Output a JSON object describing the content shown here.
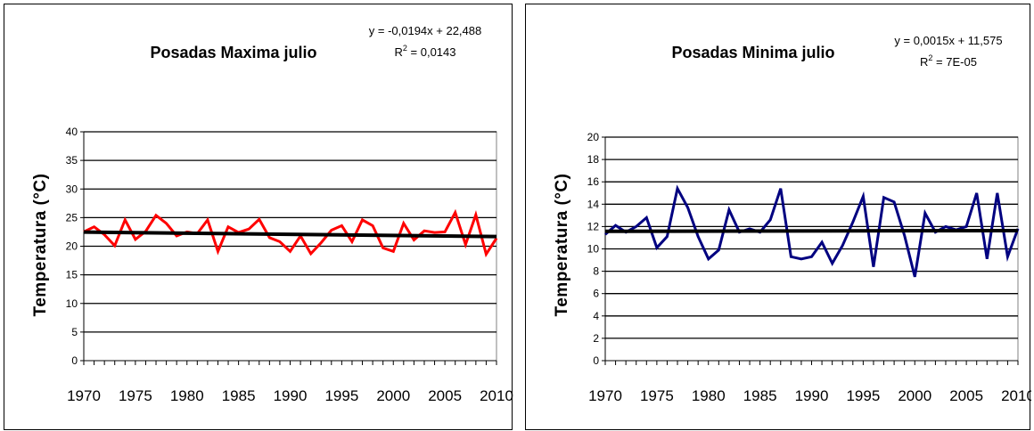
{
  "chart_data": [
    {
      "type": "line",
      "title": "Posadas Maxima julio",
      "ylabel": "Temperatura (°C)",
      "xlabel": "",
      "ylim": [
        0,
        40
      ],
      "yticks": [
        0,
        5,
        10,
        15,
        20,
        25,
        30,
        35,
        40
      ],
      "xlim": [
        1970,
        2010
      ],
      "xticks": [
        1970,
        1975,
        1980,
        1985,
        1990,
        1995,
        2000,
        2005,
        2010
      ],
      "grid": true,
      "trend_equation": "y = -0,0194x + 22,488",
      "r2_label": "R",
      "r2_value": " = 0,0143",
      "trend": {
        "slope": -0.0194,
        "intercept": 22.488
      },
      "series": [
        {
          "color": "#ff0000",
          "x": [
            1970,
            1971,
            1972,
            1973,
            1974,
            1975,
            1976,
            1977,
            1978,
            1979,
            1980,
            1981,
            1982,
            1983,
            1984,
            1985,
            1986,
            1987,
            1988,
            1989,
            1990,
            1991,
            1992,
            1993,
            1994,
            1995,
            1996,
            1997,
            1998,
            1999,
            2000,
            2001,
            2002,
            2003,
            2004,
            2005,
            2006,
            2007,
            2008,
            2009,
            2010
          ],
          "values": [
            22.5,
            23.4,
            22.0,
            20.1,
            24.6,
            21.2,
            22.6,
            25.4,
            24.0,
            21.8,
            22.5,
            22.2,
            24.6,
            19.1,
            23.4,
            22.4,
            23.0,
            24.7,
            21.5,
            20.8,
            19.1,
            21.8,
            18.7,
            20.6,
            22.8,
            23.6,
            20.8,
            24.6,
            23.6,
            19.7,
            19.1,
            24.0,
            21.1,
            22.7,
            22.4,
            22.5,
            25.9,
            20.3,
            25.5,
            18.6,
            21.4
          ]
        }
      ],
      "trend_color": "#000000"
    },
    {
      "type": "line",
      "title": "Posadas Minima julio",
      "ylabel": "Temperatura (°C)",
      "xlabel": "",
      "ylim": [
        0,
        20
      ],
      "yticks": [
        0,
        2,
        4,
        6,
        8,
        10,
        12,
        14,
        16,
        18,
        20
      ],
      "xlim": [
        1970,
        2010
      ],
      "xticks": [
        1970,
        1975,
        1980,
        1985,
        1990,
        1995,
        2000,
        2005,
        2010
      ],
      "grid": true,
      "trend_equation": "y = 0,0015x + 11,575",
      "r2_label": "R",
      "r2_value": " = 7E-05",
      "trend": {
        "slope": 0.0015,
        "intercept": 11.575
      },
      "series": [
        {
          "color": "#000080",
          "x": [
            1970,
            1971,
            1972,
            1973,
            1974,
            1975,
            1976,
            1977,
            1978,
            1979,
            1980,
            1981,
            1982,
            1983,
            1984,
            1985,
            1986,
            1987,
            1988,
            1989,
            1990,
            1991,
            1992,
            1993,
            1994,
            1995,
            1996,
            1997,
            1998,
            1999,
            2000,
            2001,
            2002,
            2003,
            2004,
            2005,
            2006,
            2007,
            2008,
            2009,
            2010
          ],
          "values": [
            11.3,
            12.1,
            11.5,
            12.0,
            12.8,
            10.1,
            11.1,
            15.4,
            13.7,
            11.1,
            9.1,
            9.9,
            13.5,
            11.5,
            11.8,
            11.5,
            12.6,
            15.4,
            9.3,
            9.1,
            9.3,
            10.6,
            8.7,
            10.3,
            12.4,
            14.7,
            8.4,
            14.6,
            14.2,
            11.2,
            7.5,
            13.2,
            11.5,
            12.0,
            11.7,
            12.0,
            15.0,
            9.1,
            15.0,
            9.3,
            11.8
          ]
        }
      ],
      "trend_color": "#000000"
    }
  ]
}
